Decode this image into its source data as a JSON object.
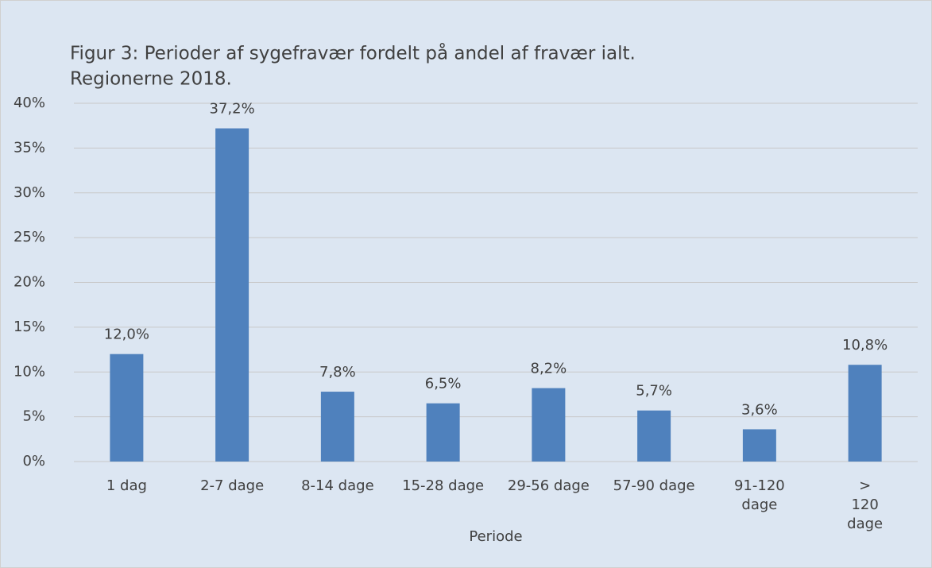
{
  "chart_data": {
    "type": "bar",
    "title": [
      "Figur 3: Perioder af sygefravær fordelt på andel af fravær ialt.",
      "Regionerne 2018."
    ],
    "x_label": "Periode",
    "categories": [
      "1 dag",
      "2-7 dage",
      "8-14 dage",
      "15-28 dage",
      "29-56 dage",
      "57-90 dage",
      "91-120 dage",
      "> 120 dage"
    ],
    "values": [
      12.0,
      37.2,
      7.8,
      6.5,
      8.2,
      5.7,
      3.6,
      10.8
    ],
    "value_labels": [
      "12,0%",
      "37,2%",
      "7,8%",
      "6,5%",
      "8,2%",
      "5,7%",
      "3,6%",
      "10,8%"
    ],
    "color": "#4f81bd",
    "ylim": [
      0,
      40
    ],
    "yticks": [
      {
        "value": 0,
        "label": "0%"
      },
      {
        "value": 5,
        "label": "5%"
      },
      {
        "value": 10,
        "label": "10%"
      },
      {
        "value": 15,
        "label": "15%"
      },
      {
        "value": 20,
        "label": "20%"
      },
      {
        "value": 25,
        "label": "25%"
      },
      {
        "value": 30,
        "label": "30%"
      },
      {
        "value": 35,
        "label": "35%"
      },
      {
        "value": 40,
        "label": "40%"
      }
    ],
    "grid": true
  }
}
